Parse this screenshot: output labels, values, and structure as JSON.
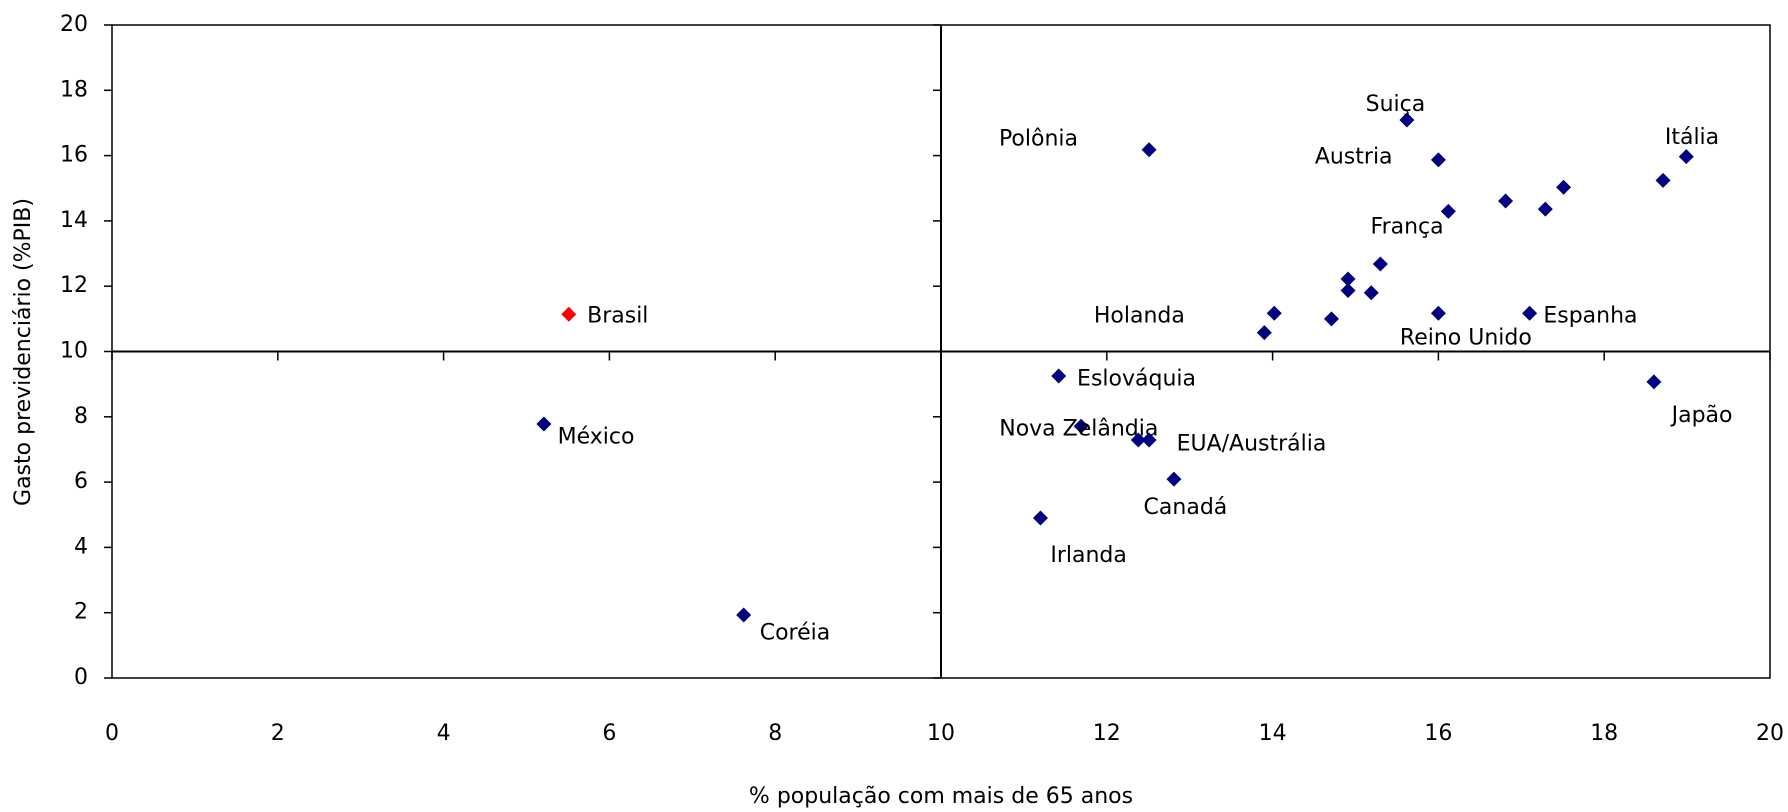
{
  "chart_data": {
    "type": "scatter",
    "xlabel": "% população com mais de 65 anos",
    "ylabel": "Gasto previdenciário (%PIB)",
    "x": [
      5.51,
      5.21,
      7.62,
      12.51,
      15.62,
      16.0,
      18.99,
      18.71,
      17.51,
      16.81,
      17.29,
      16.12,
      15.3,
      14.91,
      14.91,
      15.19,
      14.02,
      13.9,
      14.71,
      16.0,
      17.1,
      11.42,
      18.6,
      11.69,
      12.38,
      12.51,
      12.81,
      11.2
    ],
    "y": [
      11.14,
      7.78,
      1.93,
      16.18,
      17.09,
      15.87,
      15.97,
      15.24,
      15.03,
      14.61,
      14.36,
      14.29,
      12.68,
      12.22,
      11.87,
      11.8,
      11.17,
      10.58,
      11.0,
      11.17,
      11.17,
      9.25,
      9.07,
      7.71,
      7.29,
      7.29,
      6.09,
      4.9
    ],
    "labels": [
      "Brasil",
      "México",
      "Coréia",
      "Polônia",
      "Suiça",
      "Austria",
      "Itália",
      null,
      null,
      null,
      null,
      "França",
      null,
      null,
      null,
      null,
      "Holanda",
      null,
      null,
      "Reino Unido",
      "Espanha",
      "Eslováquia",
      "Japão",
      "Nova Zelândia",
      null,
      "EUA/Austrália",
      "Canadá",
      "Irlanda"
    ],
    "colors": [
      "#ff0000",
      "#000080",
      "#000080",
      "#000080",
      "#000080",
      "#000080",
      "#000080",
      "#000080",
      "#000080",
      "#000080",
      "#000080",
      "#000080",
      "#000080",
      "#000080",
      "#000080",
      "#000080",
      "#000080",
      "#000080",
      "#000080",
      "#000080",
      "#000080",
      "#000080",
      "#000080",
      "#000080",
      "#000080",
      "#000080",
      "#000080",
      "#000080"
    ],
    "xlim": [
      0,
      20
    ],
    "ylim": [
      0,
      20
    ],
    "xticks": [
      0,
      2,
      4,
      6,
      8,
      10,
      12,
      14,
      16,
      18,
      20
    ],
    "yticks": [
      0,
      2,
      4,
      6,
      8,
      10,
      12,
      14,
      16,
      18,
      20
    ],
    "quadrant_lines": {
      "x": 10,
      "y": 10
    }
  }
}
